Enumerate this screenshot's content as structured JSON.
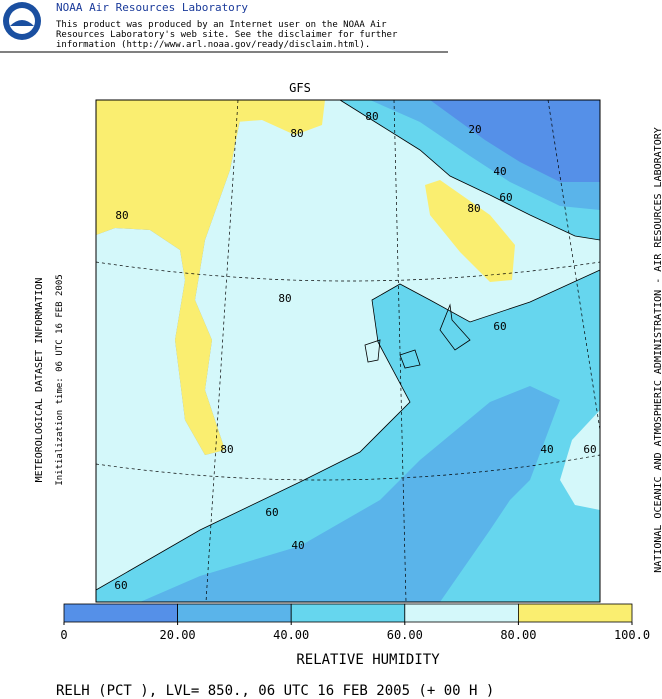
{
  "header": {
    "org": "NOAA Air Resources Laboratory",
    "disclaimer": [
      "This product was produced by an Internet user on the NOAA Air",
      "Resources Laboratory's web site.  See the disclaimer for further",
      "information (http://www.arl.noaa.gov/ready/disclaim.html)."
    ]
  },
  "map": {
    "title": "GFS",
    "left_label_1": "METEOROLOGICAL DATASET INFORMATION",
    "left_label_2": "Initialization time: 06 UTC 16 FEB 2005",
    "right_label": "NATIONAL OCEANIC AND ATMOSPHERIC ADMINISTRATION - AIR RESOURCES LABORATORY",
    "contour_labels": [
      80,
      80,
      80,
      20,
      40,
      60,
      80,
      80,
      60,
      80,
      40,
      60,
      60,
      40,
      60
    ]
  },
  "colorbar": {
    "title": "RELATIVE HUMIDITY",
    "colors": [
      "#5590e8",
      "#5ab4ea",
      "#66d6ee",
      "#d4f8fa",
      "#faee70"
    ],
    "ticks": [
      0,
      {
        "value": 20,
        "label": "20.00"
      },
      {
        "value": 40,
        "label": "40.00"
      },
      {
        "value": 60,
        "label": "60.00"
      },
      {
        "value": 80,
        "label": "80.00"
      },
      {
        "value": 100,
        "label": "100.0"
      }
    ]
  },
  "footer": "RELH (PCT ),  LVL= 850., 06 UTC 16 FEB 2005 (+ 00 H )"
}
